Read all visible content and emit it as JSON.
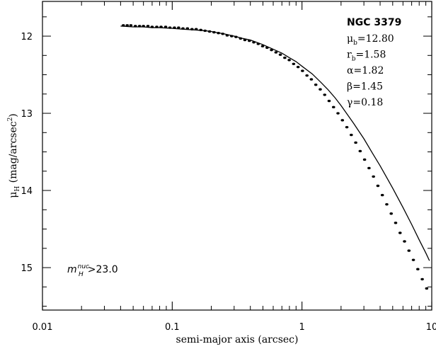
{
  "chart_data": {
    "type": "scatter",
    "xlabel": "semi-major axis (arcsec)",
    "ylabel": {
      "symbol": "μ",
      "sub": "H",
      "rest": " (mag/arcsec",
      "sup": "2",
      "close": ")"
    },
    "xscale": "log",
    "xlim": [
      0.01,
      10
    ],
    "ylim": [
      15.55,
      11.55
    ],
    "y_inverted": true,
    "x_ticks": [
      {
        "value": 0.01,
        "label": "0.01"
      },
      {
        "value": 0.1,
        "label": "0.1"
      },
      {
        "value": 1,
        "label": "1"
      },
      {
        "value": 10,
        "label": "10"
      }
    ],
    "y_ticks": [
      {
        "value": 12,
        "label": "12"
      },
      {
        "value": 13,
        "label": "13"
      },
      {
        "value": 14,
        "label": "14"
      },
      {
        "value": 15,
        "label": "15"
      }
    ],
    "y_minor_step": 0.25,
    "annotation": {
      "title": "NGC 3379",
      "params": [
        {
          "sym": "μ",
          "sub": "b",
          "val": "=12.80"
        },
        {
          "sym": "r",
          "sub": "b",
          "val": "=1.58"
        },
        {
          "sym": "α",
          "sub": "",
          "val": "=1.82"
        },
        {
          "sym": "β",
          "sub": "",
          "val": "=1.45"
        },
        {
          "sym": "γ",
          "sub": "",
          "val": "=0.18"
        }
      ],
      "nucleus": {
        "base": "m",
        "sup": "nuc",
        "sub": "H",
        "rest": ">23.0"
      }
    },
    "series": [
      {
        "kind": "points",
        "x": [
          0.042,
          0.045,
          0.048,
          0.052,
          0.056,
          0.06,
          0.065,
          0.07,
          0.076,
          0.082,
          0.089,
          0.096,
          0.104,
          0.112,
          0.121,
          0.131,
          0.142,
          0.153,
          0.166,
          0.179,
          0.194,
          0.21,
          0.227,
          0.245,
          0.265,
          0.287,
          0.31,
          0.336,
          0.363,
          0.393,
          0.425,
          0.46,
          0.497,
          0.538,
          0.582,
          0.63,
          0.681,
          0.737,
          0.797,
          0.862,
          0.933,
          1.009,
          1.092,
          1.181,
          1.278,
          1.383,
          1.496,
          1.618,
          1.751,
          1.894,
          2.049,
          2.217,
          2.398,
          2.595,
          2.807,
          3.037,
          3.286,
          3.555,
          3.846,
          4.161,
          4.502,
          4.871,
          5.269,
          5.701,
          6.168,
          6.673,
          7.219,
          7.81,
          8.45,
          9.14
        ],
        "y": [
          11.86,
          11.86,
          11.86,
          11.87,
          11.87,
          11.87,
          11.87,
          11.88,
          11.88,
          11.88,
          11.88,
          11.89,
          11.89,
          11.89,
          11.9,
          11.9,
          11.91,
          11.91,
          11.92,
          11.93,
          11.94,
          11.95,
          11.96,
          11.97,
          11.99,
          12.0,
          12.01,
          12.03,
          12.05,
          12.06,
          12.08,
          12.1,
          12.13,
          12.15,
          12.18,
          12.21,
          12.24,
          12.28,
          12.31,
          12.36,
          12.4,
          12.45,
          12.51,
          12.56,
          12.63,
          12.69,
          12.76,
          12.84,
          12.92,
          13.0,
          13.09,
          13.18,
          13.28,
          13.38,
          13.49,
          13.6,
          13.71,
          13.82,
          13.94,
          14.06,
          14.18,
          14.3,
          14.42,
          14.55,
          14.66,
          14.78,
          14.9,
          15.02,
          15.15,
          15.27
        ]
      },
      {
        "kind": "line",
        "x": [
          0.04,
          0.05,
          0.06,
          0.07,
          0.08,
          0.1,
          0.12,
          0.15,
          0.18,
          0.2,
          0.25,
          0.3,
          0.35,
          0.4,
          0.5,
          0.6,
          0.7,
          0.8,
          0.9,
          1.0,
          1.2,
          1.4,
          1.58,
          1.8,
          2.0,
          2.5,
          3.0,
          3.5,
          4.0,
          5.0,
          6.0,
          7.0,
          8.0,
          9.0,
          9.6
        ],
        "y": [
          11.87,
          11.88,
          11.88,
          11.89,
          11.89,
          11.9,
          11.91,
          11.92,
          11.93,
          11.94,
          11.97,
          12.0,
          12.03,
          12.05,
          12.11,
          12.17,
          12.22,
          12.28,
          12.33,
          12.39,
          12.49,
          12.6,
          12.69,
          12.8,
          12.9,
          13.13,
          13.33,
          13.52,
          13.68,
          13.97,
          14.22,
          14.44,
          14.64,
          14.81,
          14.91
        ]
      }
    ]
  }
}
